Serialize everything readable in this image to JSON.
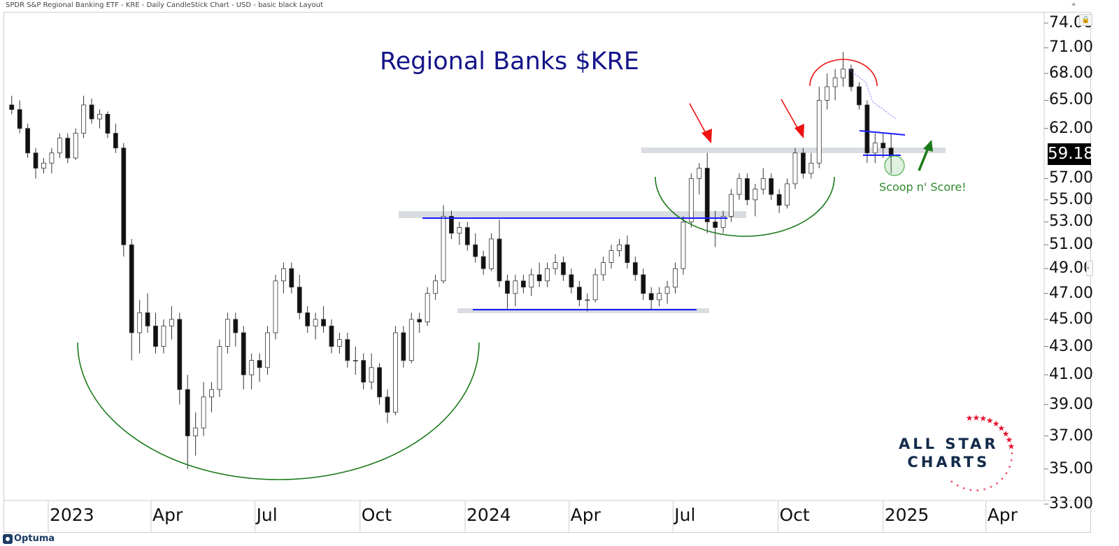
{
  "header": {
    "title": "SPDR S&P Regional Banking ETF - KRE - Daily CandleStick Chart - USD - basic black Layout"
  },
  "icons": {
    "pin": "pin-icon",
    "lock": "lock-icon",
    "collapse": "chevron-left-icon"
  },
  "annotations": {
    "title": "Regional Banks $KRE",
    "callout": "Scoop n' Score!",
    "colors": {
      "support_line": "#1a1aff",
      "zone": "#d9dce1",
      "base_arc": "#1a7a1a",
      "top_arc": "#ee1111",
      "arrow_red": "#ee1111",
      "arrow_green": "#1a7a1a",
      "title": "#14148a"
    }
  },
  "logo": {
    "line1": "ALL STAR",
    "line2": "CHARTS",
    "star_color": "#e8102b"
  },
  "footer": {
    "brand": "Optuma"
  },
  "chart_data": {
    "type": "candlestick",
    "title": "Regional Banks $KRE",
    "y_scale": "log",
    "ylim": [
      33,
      74
    ],
    "y_ticks": [
      "74.00",
      "71.00",
      "68.00",
      "65.00",
      "62.00",
      "57.00",
      "55.00",
      "53.00",
      "51.00",
      "49.00",
      "47.00",
      "45.00",
      "43.00",
      "41.00",
      "39.00",
      "37.00",
      "35.00",
      "33.00"
    ],
    "last_price": "59.18",
    "x_ticks": [
      "2023",
      "Apr",
      "Jul",
      "Oct",
      "2024",
      "Apr",
      "Jul",
      "Oct",
      "2025",
      "Apr"
    ],
    "grid": false,
    "candles_columns": [
      "week_of",
      "open",
      "high",
      "low",
      "close"
    ],
    "candles": [
      [
        "2022-11-28",
        64.5,
        65.5,
        63.5,
        64.0
      ],
      [
        "2022-12-05",
        64.0,
        65.0,
        61.5,
        62.0
      ],
      [
        "2022-12-12",
        62.0,
        62.5,
        59.0,
        59.5
      ],
      [
        "2022-12-19",
        59.5,
        60.0,
        57.0,
        58.0
      ],
      [
        "2022-12-26",
        58.0,
        59.0,
        57.5,
        58.5
      ],
      [
        "2023-01-02",
        58.5,
        60.0,
        57.5,
        59.5
      ],
      [
        "2023-01-09",
        59.5,
        61.5,
        59.0,
        61.0
      ],
      [
        "2023-01-16",
        61.0,
        61.5,
        58.5,
        59.0
      ],
      [
        "2023-01-23",
        59.0,
        62.0,
        58.8,
        61.5
      ],
      [
        "2023-01-30",
        61.5,
        65.5,
        61.0,
        64.5
      ],
      [
        "2023-02-06",
        64.5,
        65.2,
        62.5,
        63.0
      ],
      [
        "2023-02-13",
        63.0,
        64.0,
        62.0,
        63.5
      ],
      [
        "2023-02-20",
        63.5,
        63.8,
        61.0,
        61.5
      ],
      [
        "2023-02-27",
        61.5,
        62.5,
        59.5,
        60.0
      ],
      [
        "2023-03-06",
        60.0,
        60.5,
        50.0,
        51.0
      ],
      [
        "2023-03-13",
        51.0,
        51.5,
        42.0,
        44.0
      ],
      [
        "2023-03-20",
        44.0,
        46.5,
        42.5,
        45.5
      ],
      [
        "2023-03-27",
        45.5,
        47.0,
        44.0,
        44.5
      ],
      [
        "2023-04-03",
        44.5,
        45.5,
        42.5,
        43.0
      ],
      [
        "2023-04-10",
        43.0,
        45.0,
        42.5,
        44.5
      ],
      [
        "2023-04-17",
        44.5,
        46.0,
        43.5,
        45.0
      ],
      [
        "2023-04-24",
        45.0,
        45.5,
        39.0,
        40.0
      ],
      [
        "2023-05-01",
        40.0,
        41.0,
        35.0,
        37.0
      ],
      [
        "2023-05-08",
        37.0,
        38.5,
        35.8,
        37.5
      ],
      [
        "2023-05-15",
        37.5,
        40.5,
        37.0,
        39.5
      ],
      [
        "2023-05-22",
        39.5,
        40.5,
        38.5,
        40.0
      ],
      [
        "2023-05-29",
        40.0,
        43.5,
        39.5,
        43.0
      ],
      [
        "2023-06-05",
        43.0,
        45.5,
        42.5,
        45.0
      ],
      [
        "2023-06-12",
        45.0,
        45.5,
        43.0,
        44.0
      ],
      [
        "2023-06-19",
        44.0,
        44.5,
        40.0,
        41.0
      ],
      [
        "2023-06-26",
        41.0,
        42.5,
        40.0,
        42.0
      ],
      [
        "2023-07-03",
        42.0,
        42.5,
        40.5,
        41.5
      ],
      [
        "2023-07-10",
        41.5,
        44.5,
        41.0,
        44.0
      ],
      [
        "2023-07-17",
        44.0,
        48.5,
        43.5,
        48.0
      ],
      [
        "2023-07-24",
        48.0,
        49.5,
        47.0,
        49.0
      ],
      [
        "2023-07-31",
        49.0,
        49.5,
        47.0,
        47.5
      ],
      [
        "2023-08-07",
        47.5,
        48.5,
        45.0,
        45.5
      ],
      [
        "2023-08-14",
        45.5,
        46.0,
        44.0,
        44.5
      ],
      [
        "2023-08-21",
        44.5,
        45.5,
        43.5,
        45.0
      ],
      [
        "2023-08-28",
        45.0,
        46.0,
        44.0,
        44.5
      ],
      [
        "2023-09-04",
        44.5,
        45.0,
        42.5,
        43.0
      ],
      [
        "2023-09-11",
        43.0,
        44.0,
        42.5,
        43.5
      ],
      [
        "2023-09-18",
        43.5,
        44.0,
        41.5,
        42.0
      ],
      [
        "2023-09-25",
        42.0,
        43.0,
        41.0,
        42.0
      ],
      [
        "2023-10-02",
        42.0,
        42.5,
        40.0,
        40.5
      ],
      [
        "2023-10-09",
        40.5,
        42.5,
        40.0,
        41.5
      ],
      [
        "2023-10-16",
        41.5,
        41.8,
        39.0,
        39.5
      ],
      [
        "2023-10-23",
        39.5,
        40.0,
        37.8,
        38.5
      ],
      [
        "2023-10-30",
        38.5,
        44.5,
        38.3,
        44.0
      ],
      [
        "2023-11-06",
        44.0,
        44.5,
        41.5,
        42.0
      ],
      [
        "2023-11-13",
        42.0,
        45.5,
        41.8,
        45.0
      ],
      [
        "2023-11-20",
        45.0,
        45.5,
        44.0,
        44.8
      ],
      [
        "2023-11-27",
        44.8,
        47.5,
        44.5,
        47.0
      ],
      [
        "2023-12-04",
        47.0,
        48.5,
        46.5,
        48.0
      ],
      [
        "2023-12-11",
        48.0,
        54.5,
        47.8,
        53.5
      ],
      [
        "2023-12-18",
        53.5,
        54.0,
        51.5,
        52.0
      ],
      [
        "2023-12-25",
        52.0,
        53.0,
        51.0,
        52.5
      ],
      [
        "2024-01-01",
        52.5,
        53.0,
        50.5,
        51.0
      ],
      [
        "2024-01-08",
        51.0,
        52.0,
        49.5,
        50.0
      ],
      [
        "2024-01-15",
        50.0,
        50.5,
        48.5,
        49.0
      ],
      [
        "2024-01-22",
        49.0,
        52.0,
        48.8,
        51.5
      ],
      [
        "2024-01-29",
        51.5,
        53.2,
        47.5,
        48.0
      ],
      [
        "2024-02-05",
        48.0,
        48.5,
        45.8,
        47.0
      ],
      [
        "2024-02-12",
        47.0,
        48.5,
        46.0,
        48.0
      ],
      [
        "2024-02-19",
        48.0,
        48.5,
        47.0,
        47.5
      ],
      [
        "2024-02-26",
        47.5,
        49.0,
        46.8,
        48.5
      ],
      [
        "2024-03-04",
        48.5,
        49.5,
        47.5,
        48.0
      ],
      [
        "2024-03-11",
        48.0,
        49.5,
        47.5,
        49.0
      ],
      [
        "2024-03-18",
        49.0,
        50.2,
        48.5,
        49.5
      ],
      [
        "2024-03-25",
        49.5,
        50.0,
        48.0,
        48.5
      ],
      [
        "2024-04-01",
        48.5,
        49.0,
        47.0,
        47.5
      ],
      [
        "2024-04-08",
        47.5,
        48.0,
        46.0,
        46.5
      ],
      [
        "2024-04-15",
        46.5,
        47.0,
        45.6,
        46.5
      ],
      [
        "2024-04-22",
        46.5,
        49.0,
        46.3,
        48.5
      ],
      [
        "2024-04-29",
        48.5,
        50.0,
        48.0,
        49.5
      ],
      [
        "2024-05-06",
        49.5,
        51.0,
        49.0,
        50.5
      ],
      [
        "2024-05-13",
        50.5,
        51.5,
        50.0,
        51.0
      ],
      [
        "2024-05-20",
        51.0,
        51.8,
        49.0,
        49.5
      ],
      [
        "2024-05-27",
        49.5,
        50.0,
        48.0,
        48.5
      ],
      [
        "2024-06-03",
        48.5,
        49.0,
        46.5,
        47.0
      ],
      [
        "2024-06-10",
        47.0,
        47.5,
        45.7,
        46.5
      ],
      [
        "2024-06-17",
        46.5,
        47.5,
        46.0,
        47.0
      ],
      [
        "2024-06-24",
        47.0,
        48.0,
        46.2,
        47.5
      ],
      [
        "2024-07-01",
        47.5,
        49.5,
        47.0,
        49.0
      ],
      [
        "2024-07-08",
        49.0,
        53.5,
        48.5,
        53.0
      ],
      [
        "2024-07-15",
        53.0,
        57.5,
        52.5,
        57.0
      ],
      [
        "2024-07-22",
        57.0,
        58.5,
        55.5,
        58.0
      ],
      [
        "2024-07-29",
        58.0,
        59.5,
        52.0,
        53.0
      ],
      [
        "2024-08-05",
        53.0,
        54.0,
        50.8,
        52.5
      ],
      [
        "2024-08-12",
        52.5,
        54.0,
        52.0,
        53.5
      ],
      [
        "2024-08-19",
        53.5,
        56.0,
        53.0,
        55.5
      ],
      [
        "2024-08-26",
        55.5,
        57.5,
        55.0,
        57.0
      ],
      [
        "2024-09-02",
        57.0,
        57.5,
        54.5,
        55.0
      ],
      [
        "2024-09-09",
        55.0,
        56.5,
        53.5,
        56.0
      ],
      [
        "2024-09-16",
        56.0,
        58.0,
        55.5,
        57.0
      ],
      [
        "2024-09-23",
        57.0,
        57.5,
        55.0,
        55.5
      ],
      [
        "2024-09-30",
        55.5,
        56.0,
        53.8,
        54.5
      ],
      [
        "2024-10-07",
        54.5,
        57.0,
        54.2,
        56.5
      ],
      [
        "2024-10-14",
        56.5,
        60.0,
        56.0,
        59.5
      ],
      [
        "2024-10-21",
        59.5,
        60.0,
        57.0,
        57.5
      ],
      [
        "2024-10-28",
        57.5,
        59.5,
        57.0,
        58.5
      ],
      [
        "2024-11-04",
        58.5,
        66.5,
        58.0,
        65.0
      ],
      [
        "2024-11-11",
        65.0,
        68.0,
        64.0,
        66.5
      ],
      [
        "2024-11-18",
        66.5,
        68.5,
        65.0,
        67.5
      ],
      [
        "2024-11-25",
        67.5,
        70.5,
        66.5,
        68.5
      ],
      [
        "2024-12-02",
        68.5,
        69.0,
        66.0,
        66.5
      ],
      [
        "2024-12-09",
        66.5,
        67.0,
        64.0,
        64.5
      ],
      [
        "2024-12-16",
        64.5,
        65.0,
        58.5,
        59.5
      ],
      [
        "2024-12-23",
        59.5,
        61.5,
        58.5,
        60.5
      ],
      [
        "2024-12-30",
        60.5,
        61.5,
        59.0,
        60.0
      ],
      [
        "2025-01-06",
        60.0,
        61.5,
        57.5,
        59.18
      ]
    ]
  }
}
